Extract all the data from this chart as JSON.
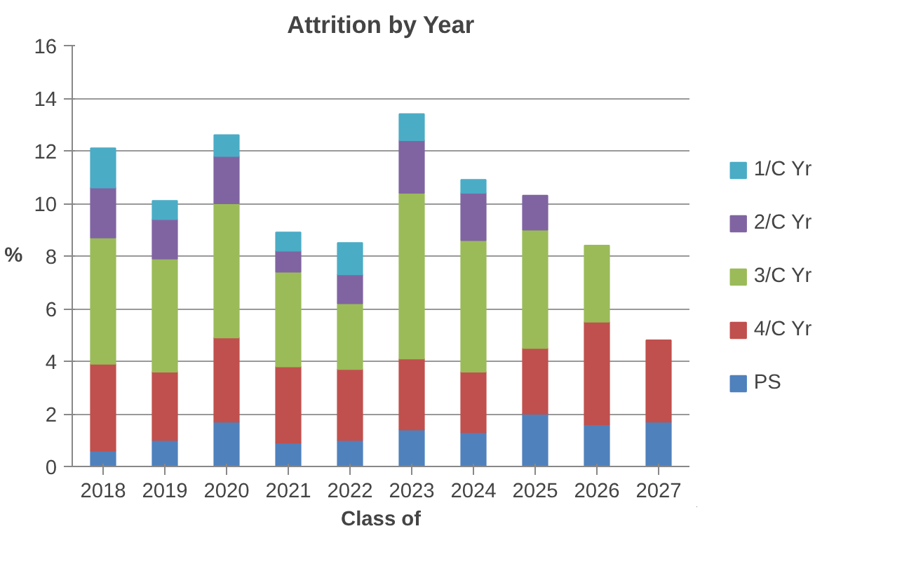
{
  "chart_data": {
    "type": "bar",
    "title": "Attrition by Year",
    "xlabel": "Class of",
    "ylabel": "%",
    "categories": [
      "2018",
      "2019",
      "2020",
      "2021",
      "2022",
      "2023",
      "2024",
      "2025",
      "2026",
      "2027"
    ],
    "stacked": true,
    "ylim": [
      0,
      16
    ],
    "yticks": [
      0,
      2,
      4,
      6,
      8,
      10,
      12,
      14,
      16
    ],
    "grid": "y",
    "legend": "right",
    "series": [
      {
        "name": "PS",
        "color": "#4f81bd",
        "values": [
          0.6,
          1.0,
          1.7,
          0.9,
          1.0,
          1.4,
          1.3,
          2.0,
          1.6,
          1.7
        ]
      },
      {
        "name": "4/C Yr",
        "color": "#c0504d",
        "values": [
          3.3,
          2.6,
          3.2,
          2.9,
          2.7,
          2.7,
          2.3,
          2.5,
          3.9,
          3.1
        ]
      },
      {
        "name": "3/C Yr",
        "color": "#9bbb59",
        "values": [
          4.8,
          4.3,
          5.1,
          3.6,
          2.5,
          6.3,
          5.0,
          4.5,
          2.9,
          null
        ]
      },
      {
        "name": "2/C Yr",
        "color": "#8064a2",
        "values": [
          1.9,
          1.5,
          1.8,
          0.8,
          1.1,
          2.0,
          1.8,
          1.3,
          null,
          null
        ]
      },
      {
        "name": "1/C Yr",
        "color": "#4bacc6",
        "values": [
          1.5,
          0.7,
          0.8,
          0.7,
          1.2,
          1.0,
          0.5,
          null,
          null,
          null
        ]
      }
    ]
  }
}
